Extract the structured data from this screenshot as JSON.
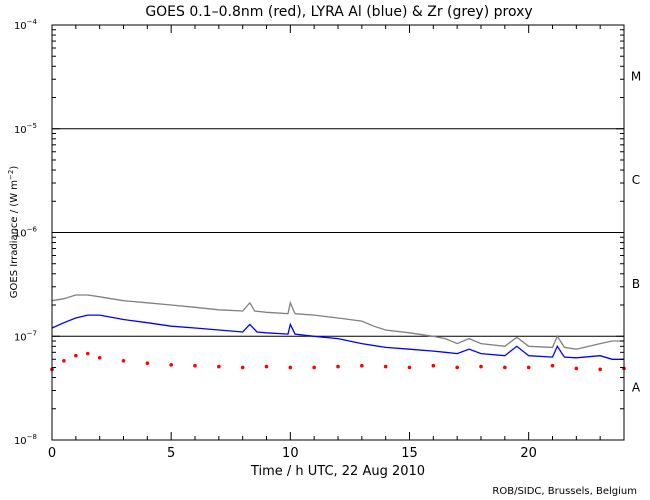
{
  "chart_data": {
    "type": "scatter",
    "title": "GOES 0.1–0.8nm (red), LYRA Al (blue) & Zr (grey) proxy",
    "xlabel": "Time / h UTC, 22 Aug 2010",
    "ylabel_text": "GOES Irradiance / (W m",
    "ylabel_unit_exponent": "−2",
    "ylabel_close": ")",
    "credit": "ROB/SIDC, Brussels, Belgium",
    "x_range": [
      0,
      24
    ],
    "y_range": [
      1e-08,
      0.0001
    ],
    "y_scale": "log",
    "x_ticks": [
      {
        "value": 0,
        "label": "0"
      },
      {
        "value": 5,
        "label": "5"
      },
      {
        "value": 10,
        "label": "10"
      },
      {
        "value": 15,
        "label": "15"
      },
      {
        "value": 20,
        "label": "20"
      }
    ],
    "y_ticks": [
      {
        "value": 1e-08,
        "base": "10",
        "exp": "−8"
      },
      {
        "value": 1e-07,
        "base": "10",
        "exp": "−7"
      },
      {
        "value": 1e-06,
        "base": "10",
        "exp": "−6"
      },
      {
        "value": 1e-05,
        "base": "10",
        "exp": "−5"
      },
      {
        "value": 0.0001,
        "base": "10",
        "exp": "−4"
      }
    ],
    "threshold_lines": [
      1e-07,
      1e-06,
      1e-05
    ],
    "flare_classes": [
      {
        "label": "A",
        "y": 3.2e-08
      },
      {
        "label": "B",
        "y": 3.2e-07
      },
      {
        "label": "C",
        "y": 3.2e-06
      },
      {
        "label": "M",
        "y": 3.2e-05
      }
    ],
    "series": [
      {
        "color": "#808080",
        "style": "line",
        "points": [
          [
            0,
            2.2e-07
          ],
          [
            0.5,
            2.3e-07
          ],
          [
            1,
            2.5e-07
          ],
          [
            1.5,
            2.5e-07
          ],
          [
            2,
            2.4e-07
          ],
          [
            3,
            2.2e-07
          ],
          [
            4,
            2.1e-07
          ],
          [
            5,
            2e-07
          ],
          [
            6,
            1.9e-07
          ],
          [
            7,
            1.8e-07
          ],
          [
            8,
            1.75e-07
          ],
          [
            8.3,
            2.1e-07
          ],
          [
            8.5,
            1.75e-07
          ],
          [
            9,
            1.7e-07
          ],
          [
            9.9,
            1.65e-07
          ],
          [
            10,
            2.1e-07
          ],
          [
            10.2,
            1.65e-07
          ],
          [
            11,
            1.6e-07
          ],
          [
            12,
            1.5e-07
          ],
          [
            13,
            1.4e-07
          ],
          [
            13.5,
            1.25e-07
          ],
          [
            14,
            1.15e-07
          ],
          [
            15,
            1.08e-07
          ],
          [
            16,
            1e-07
          ],
          [
            16.5,
            9.5e-08
          ],
          [
            17,
            8.5e-08
          ],
          [
            17.5,
            9.5e-08
          ],
          [
            18,
            8.5e-08
          ],
          [
            19,
            8e-08
          ],
          [
            19.5,
            9.8e-08
          ],
          [
            20,
            8e-08
          ],
          [
            21,
            7.8e-08
          ],
          [
            21.2,
            1e-07
          ],
          [
            21.5,
            7.8e-08
          ],
          [
            22,
            7.5e-08
          ],
          [
            23,
            8.5e-08
          ],
          [
            23.5,
            9e-08
          ],
          [
            24,
            9e-08
          ]
        ]
      },
      {
        "color": "#0000ff",
        "style": "line",
        "points": [
          [
            0,
            1.2e-07
          ],
          [
            0.5,
            1.35e-07
          ],
          [
            1,
            1.5e-07
          ],
          [
            1.5,
            1.6e-07
          ],
          [
            2,
            1.6e-07
          ],
          [
            3,
            1.45e-07
          ],
          [
            4,
            1.35e-07
          ],
          [
            5,
            1.25e-07
          ],
          [
            6,
            1.2e-07
          ],
          [
            7,
            1.15e-07
          ],
          [
            8,
            1.1e-07
          ],
          [
            8.3,
            1.3e-07
          ],
          [
            8.6,
            1.1e-07
          ],
          [
            9,
            1.08e-07
          ],
          [
            9.9,
            1.05e-07
          ],
          [
            10,
            1.3e-07
          ],
          [
            10.2,
            1.05e-07
          ],
          [
            11,
            1e-07
          ],
          [
            12,
            9.5e-08
          ],
          [
            13,
            8.5e-08
          ],
          [
            14,
            7.8e-08
          ],
          [
            15,
            7.5e-08
          ],
          [
            16,
            7.2e-08
          ],
          [
            16.5,
            7e-08
          ],
          [
            17,
            6.8e-08
          ],
          [
            17.5,
            7.5e-08
          ],
          [
            18,
            6.8e-08
          ],
          [
            19,
            6.5e-08
          ],
          [
            19.5,
            8e-08
          ],
          [
            20,
            6.5e-08
          ],
          [
            21,
            6.3e-08
          ],
          [
            21.2,
            8e-08
          ],
          [
            21.5,
            6.3e-08
          ],
          [
            22,
            6.2e-08
          ],
          [
            23,
            6.5e-08
          ],
          [
            23.5,
            6e-08
          ],
          [
            24,
            6e-08
          ]
        ]
      },
      {
        "color": "#ff0000",
        "style": "dots",
        "points": [
          [
            0,
            4.8e-08
          ],
          [
            0.5,
            5.8e-08
          ],
          [
            1,
            6.5e-08
          ],
          [
            1.5,
            6.8e-08
          ],
          [
            2,
            6.2e-08
          ],
          [
            3,
            5.8e-08
          ],
          [
            4,
            5.5e-08
          ],
          [
            5,
            5.3e-08
          ],
          [
            6,
            5.2e-08
          ],
          [
            7,
            5.1e-08
          ],
          [
            8,
            5e-08
          ],
          [
            9,
            5.1e-08
          ],
          [
            10,
            5e-08
          ],
          [
            11,
            5e-08
          ],
          [
            12,
            5.1e-08
          ],
          [
            13,
            5.2e-08
          ],
          [
            14,
            5.1e-08
          ],
          [
            15,
            5e-08
          ],
          [
            16,
            5.2e-08
          ],
          [
            17,
            5e-08
          ],
          [
            18,
            5.1e-08
          ],
          [
            19,
            5e-08
          ],
          [
            20,
            5e-08
          ],
          [
            21,
            5.2e-08
          ],
          [
            22,
            4.9e-08
          ],
          [
            23,
            4.8e-08
          ],
          [
            24,
            4.9e-08
          ]
        ]
      }
    ]
  }
}
